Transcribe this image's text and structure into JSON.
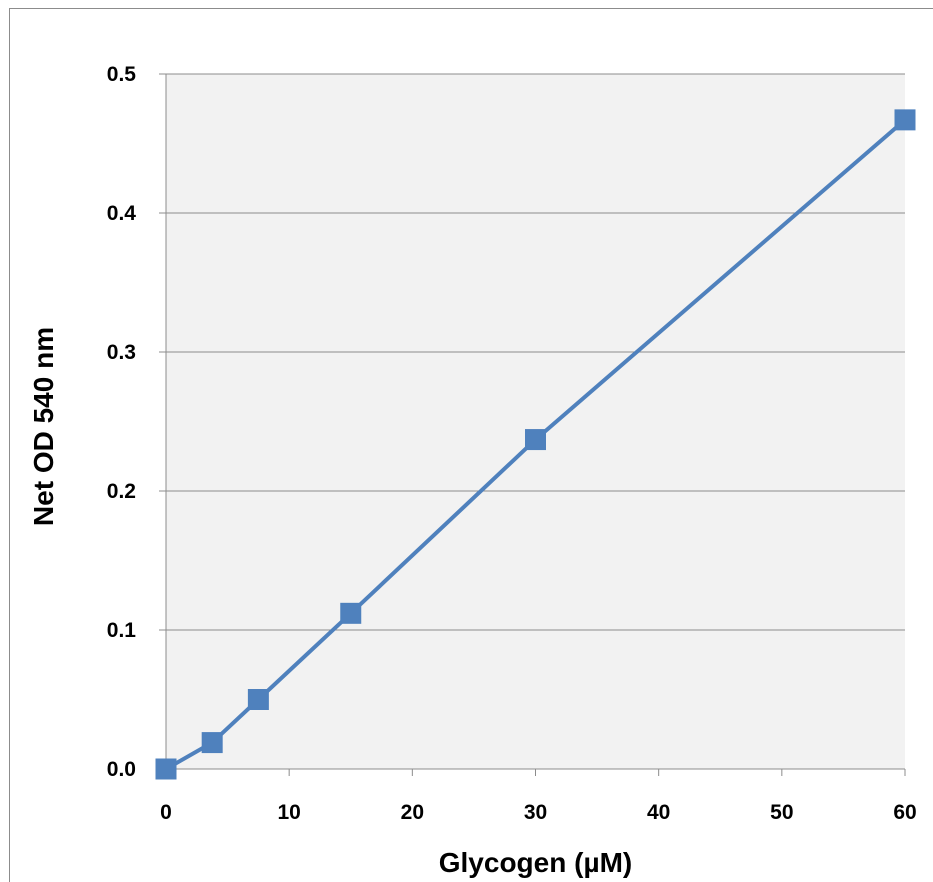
{
  "chart_data": {
    "type": "line",
    "title": "",
    "xlabel": "Glycogen (µM)",
    "ylabel": "Net OD 540 nm",
    "xlim": [
      0,
      60
    ],
    "ylim": [
      0,
      0.5
    ],
    "x_ticks": [
      "0",
      "10",
      "20",
      "30",
      "40",
      "50",
      "60"
    ],
    "y_ticks": [
      "0.0",
      "0.1",
      "0.2",
      "0.3",
      "0.4",
      "0.5"
    ],
    "grid": "horizontal",
    "legend": "none",
    "series": [
      {
        "x": [
          0,
          3.75,
          7.5,
          15,
          30,
          60
        ],
        "values": [
          0.0,
          0.019,
          0.05,
          0.112,
          0.237,
          0.467
        ],
        "color": "#4f81bd",
        "marker": "square"
      }
    ],
    "plot_background": "#f2f2f2",
    "gridline_color": "#8c8c8c"
  }
}
